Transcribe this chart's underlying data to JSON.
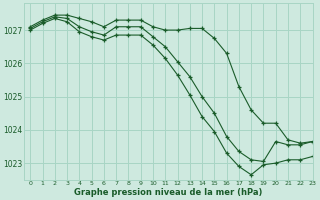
{
  "background_color": "#cee9df",
  "grid_color": "#a8d5c5",
  "line_color": "#1a5c2a",
  "marker": "+",
  "xlabel": "Graphe pression niveau de la mer (hPa)",
  "ylim": [
    1022.5,
    1027.8
  ],
  "xlim": [
    -0.5,
    23
  ],
  "yticks": [
    1023,
    1024,
    1025,
    1026,
    1027
  ],
  "xticks": [
    0,
    1,
    2,
    3,
    4,
    5,
    6,
    7,
    8,
    9,
    10,
    11,
    12,
    13,
    14,
    15,
    16,
    17,
    18,
    19,
    20,
    21,
    22,
    23
  ],
  "series": [
    {
      "x": [
        0,
        1,
        2,
        3,
        4,
        5,
        6,
        7,
        8,
        9,
        10,
        11,
        12,
        13,
        14,
        15,
        16,
        17,
        18,
        19,
        20,
        21,
        22,
        23
      ],
      "y": [
        1027.1,
        1027.3,
        1027.45,
        1027.45,
        1027.35,
        1027.25,
        1027.1,
        1027.3,
        1027.3,
        1027.3,
        1027.1,
        1027.0,
        1027.0,
        1027.05,
        1027.05,
        1026.75,
        1026.3,
        1025.3,
        1024.6,
        1024.2,
        1024.2,
        1023.7,
        1023.6,
        1023.65
      ]
    },
    {
      "x": [
        0,
        1,
        2,
        3,
        4,
        5,
        6,
        7,
        8,
        9,
        10,
        11,
        12,
        13,
        14,
        15,
        16,
        17,
        18,
        19,
        20,
        21,
        22,
        23
      ],
      "y": [
        1027.05,
        1027.25,
        1027.4,
        1027.35,
        1027.1,
        1026.95,
        1026.85,
        1027.1,
        1027.1,
        1027.1,
        1026.8,
        1026.5,
        1026.05,
        1025.6,
        1025.0,
        1024.5,
        1023.8,
        1023.35,
        1023.1,
        1023.05,
        1023.65,
        1023.55,
        1023.55,
        1023.65
      ]
    },
    {
      "x": [
        0,
        1,
        2,
        3,
        4,
        5,
        6,
        7,
        8,
        9,
        10,
        11,
        12,
        13,
        14,
        15,
        16,
        17,
        18,
        19,
        20,
        21,
        22,
        23
      ],
      "y": [
        1027.0,
        1027.2,
        1027.35,
        1027.25,
        1026.95,
        1026.8,
        1026.7,
        1026.85,
        1026.85,
        1026.85,
        1026.55,
        1026.15,
        1025.65,
        1025.05,
        1024.4,
        1023.95,
        1023.3,
        1022.9,
        1022.65,
        1022.95,
        1023.0,
        1023.1,
        1023.1,
        1023.2
      ]
    }
  ]
}
